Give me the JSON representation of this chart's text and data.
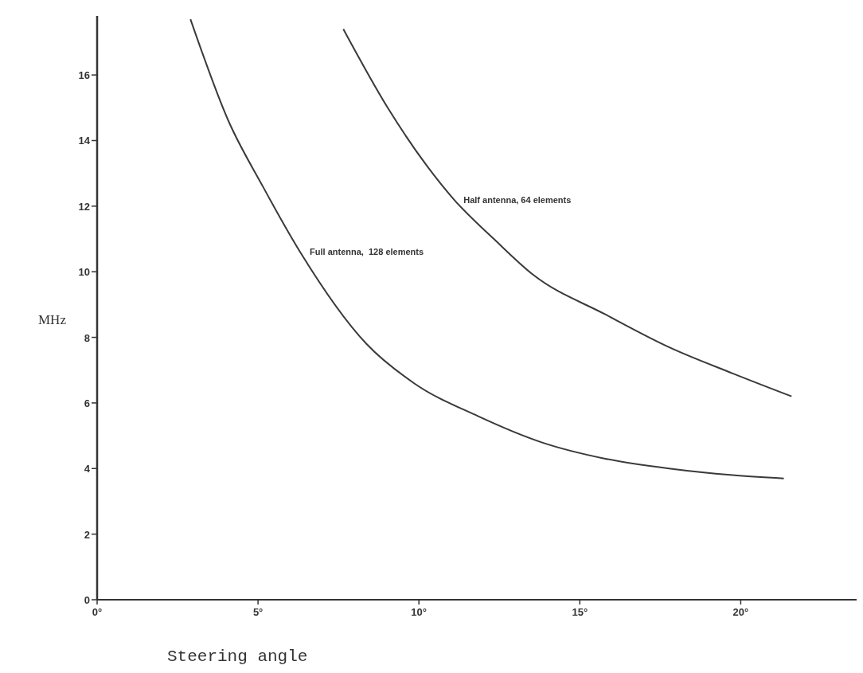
{
  "chart_data": {
    "type": "line",
    "xlabel": "Steering angle",
    "ylabel": "MHz",
    "xlim": [
      0,
      23.8
    ],
    "ylim": [
      0,
      17.8
    ],
    "xticks": [
      {
        "value": 0,
        "label": "0°"
      },
      {
        "value": 5,
        "label": "5°"
      },
      {
        "value": 10,
        "label": "10°"
      },
      {
        "value": 15,
        "label": "15°"
      },
      {
        "value": 20,
        "label": "20°"
      }
    ],
    "yticks": [
      0,
      2,
      4,
      6,
      8,
      10,
      12,
      14,
      16
    ],
    "grid": false,
    "marker": "none",
    "line_style": "solid",
    "series": [
      {
        "name": "Full antenna,  128 elements",
        "color": "#3a3a3a",
        "x": [
          2.9,
          4.08,
          5.15,
          6.31,
          8.37,
          9.85,
          11.83,
          13.81,
          15.79,
          17.77,
          19.75,
          21.34
        ],
        "values": [
          17.7,
          14.6,
          12.6,
          10.6,
          7.8,
          6.6,
          5.6,
          4.8,
          4.3,
          4.0,
          3.8,
          3.7
        ]
      },
      {
        "name": "Half antenna, 64 elements",
        "color": "#3a3a3a",
        "x": [
          7.65,
          9.03,
          10.27,
          11.09,
          12.33,
          13.56,
          15.79,
          17.77,
          19.75,
          21.58
        ],
        "values": [
          17.4,
          15.0,
          13.2,
          12.2,
          11.0,
          9.9,
          8.7,
          7.7,
          6.9,
          6.2
        ]
      }
    ]
  }
}
